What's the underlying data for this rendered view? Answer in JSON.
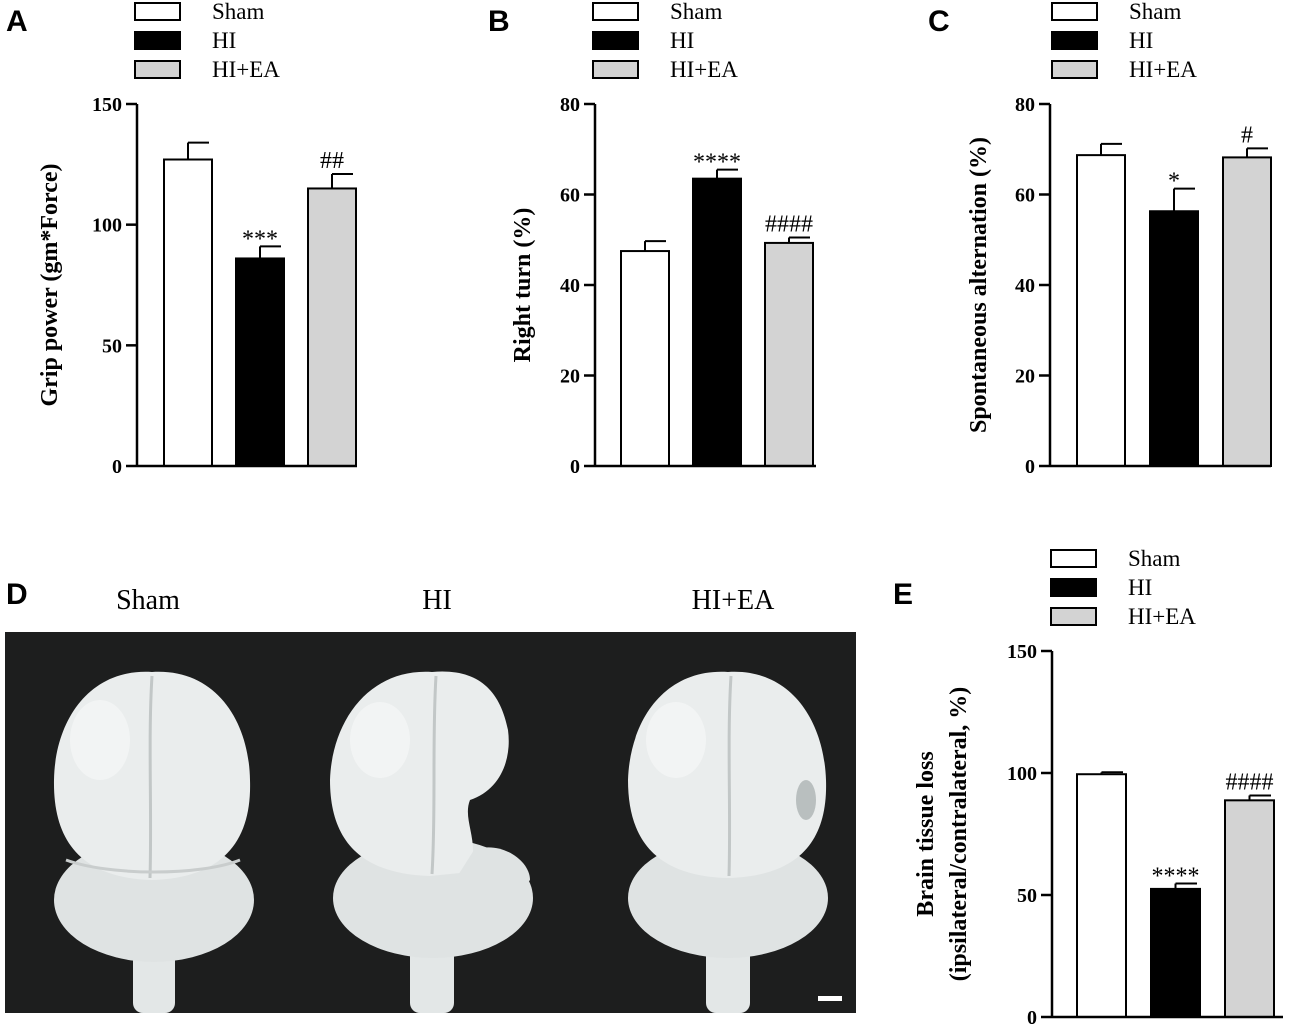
{
  "colors": {
    "sham": "#ffffff",
    "hi": "#000000",
    "hi_ea": "#d3d3d3",
    "axis": "#000000",
    "photo_bg": "#1d1e1e",
    "brain": "#e9ecec"
  },
  "photo": {
    "letter": "D",
    "labels": [
      "Sham",
      "HI",
      "HI+EA"
    ]
  },
  "chart_data": [
    {
      "letter": "A",
      "type": "bar",
      "categories": [
        "Sham",
        "HI",
        "HI+EA"
      ],
      "legend": [
        "Sham",
        "HI",
        "HI+EA"
      ],
      "legend_position": "top",
      "ylabel": "Grip power (gm*Force)",
      "values": [
        127,
        86,
        115
      ],
      "errors": [
        7,
        5,
        6
      ],
      "significance": [
        "",
        "***",
        "##"
      ],
      "ylim": [
        0,
        150
      ],
      "yticks": [
        0,
        50,
        100,
        150
      ],
      "grid": false
    },
    {
      "letter": "B",
      "type": "bar",
      "categories": [
        "Sham",
        "HI",
        "HI+EA"
      ],
      "legend": [
        "Sham",
        "HI",
        "HI+EA"
      ],
      "legend_position": "top",
      "ylabel": "Right turn (%)",
      "values": [
        47.5,
        63.5,
        49.3
      ],
      "errors": [
        2.2,
        2,
        1.2
      ],
      "significance": [
        "",
        "****",
        "####"
      ],
      "ylim": [
        0,
        80
      ],
      "yticks": [
        0,
        20,
        40,
        60,
        80
      ],
      "grid": false
    },
    {
      "letter": "C",
      "type": "bar",
      "categories": [
        "Sham",
        "HI",
        "HI+EA"
      ],
      "legend": [
        "Sham",
        "HI",
        "HI+EA"
      ],
      "legend_position": "top",
      "ylabel": "Spontaneous alternation (%)",
      "values": [
        68.7,
        56.3,
        68.2
      ],
      "errors": [
        2.5,
        5,
        2
      ],
      "significance": [
        "",
        "*",
        "#"
      ],
      "ylim": [
        0,
        80
      ],
      "yticks": [
        0,
        20,
        40,
        60,
        80
      ],
      "grid": false
    },
    {
      "letter": "E",
      "type": "bar",
      "categories": [
        "Sham",
        "HI",
        "HI+EA"
      ],
      "legend": [
        "Sham",
        "HI",
        "HI+EA"
      ],
      "legend_position": "top",
      "ylabel": "Brain tissue loss",
      "ylabel2": "(ipsilateral/contralateral, %)",
      "values": [
        99.5,
        52.5,
        88.8
      ],
      "errors": [
        0.8,
        2.2,
        2
      ],
      "significance": [
        "",
        "****",
        "####"
      ],
      "ylim": [
        0,
        150
      ],
      "yticks": [
        0,
        50,
        100,
        150
      ],
      "grid": false
    }
  ]
}
